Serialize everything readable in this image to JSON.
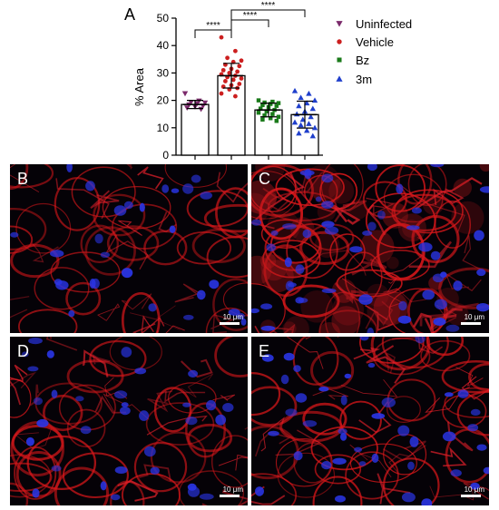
{
  "panels": {
    "a": "A",
    "b": "B",
    "c": "C",
    "d": "D",
    "e": "E"
  },
  "scale_bar_label": "10 μm",
  "chart_data": {
    "type": "bar",
    "title": "",
    "xlabel": "",
    "ylabel": "% Area",
    "ylim": [
      0,
      50
    ],
    "yticks": [
      "0",
      "10",
      "20",
      "30",
      "40",
      "50"
    ],
    "grid": false,
    "legend_position": "right",
    "categories": [
      "Uninfected",
      "Vehicle",
      "Bz",
      "3m"
    ],
    "series": [
      {
        "name": "Uninfected",
        "mean": 18.5,
        "sd": 1.5,
        "color": "#7b2a6b",
        "marker": "triangle-down",
        "points": [
          22.5,
          19.8,
          19.3,
          19.1,
          18.8,
          18.4,
          18.0,
          17.7,
          17.3,
          16.8
        ]
      },
      {
        "name": "Vehicle",
        "mean": 29.0,
        "sd": 4.5,
        "color": "#cc1f1f",
        "marker": "circle",
        "points": [
          43.0,
          38.0,
          35.5,
          34.5,
          34.0,
          33.0,
          32.5,
          31.5,
          31.0,
          30.5,
          30.0,
          29.5,
          29.0,
          28.5,
          28.0,
          27.5,
          27.0,
          26.0,
          25.5,
          25.0,
          24.5,
          24.0,
          22.5,
          21.5
        ]
      },
      {
        "name": "Bz",
        "mean": 16.5,
        "sd": 2.5,
        "color": "#1a7a1a",
        "marker": "square",
        "points": [
          20.0,
          19.5,
          19.2,
          19.0,
          18.7,
          18.3,
          18.0,
          17.5,
          17.0,
          16.5,
          16.0,
          15.5,
          15.0,
          14.5,
          14.0,
          13.5,
          13.0,
          12.5
        ]
      },
      {
        "name": "3m",
        "mean": 14.8,
        "sd": 4.9,
        "color": "#1f3fcc",
        "marker": "triangle-up",
        "points": [
          23.5,
          22.5,
          21.0,
          20.0,
          19.0,
          18.0,
          17.0,
          16.0,
          15.0,
          14.0,
          13.0,
          12.0,
          11.5,
          11.0,
          10.0,
          9.0,
          8.0,
          7.0
        ]
      }
    ],
    "significance": [
      {
        "from": "Uninfected",
        "to": "Vehicle",
        "label": "****"
      },
      {
        "from": "Vehicle",
        "to": "Bz",
        "label": "****"
      },
      {
        "from": "Vehicle",
        "to": "3m",
        "label": "****"
      }
    ]
  }
}
